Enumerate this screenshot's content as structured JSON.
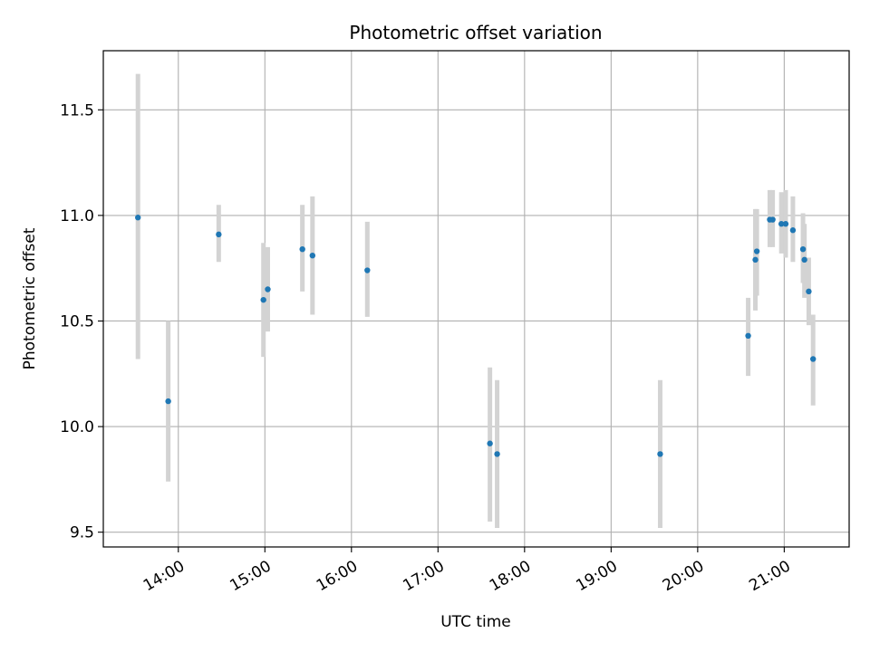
{
  "chart_data": {
    "type": "scatter",
    "title": "Photometric offset variation",
    "xlabel": "UTC time",
    "ylabel": "Photometric offset",
    "x_axis_kind": "time-of-day",
    "xlim": [
      "13:08",
      "21:45"
    ],
    "ylim": [
      9.43,
      11.78
    ],
    "grid": true,
    "x_ticks": [
      "14:00",
      "15:00",
      "16:00",
      "17:00",
      "18:00",
      "19:00",
      "20:00",
      "21:00"
    ],
    "y_ticks": [
      9.5,
      10.0,
      10.5,
      11.0,
      11.5
    ],
    "y_tick_labels": [
      "9.5",
      "10.0",
      "10.5",
      "11.0",
      "11.5"
    ],
    "colors": {
      "point": "#1f77b4",
      "errorbar": "#d3d3d3",
      "grid": "#b0b0b0"
    },
    "points": [
      {
        "x": "13:32",
        "y": 10.99,
        "ylo": 10.32,
        "yhi": 11.67
      },
      {
        "x": "13:53",
        "y": 10.12,
        "ylo": 9.74,
        "yhi": 10.5
      },
      {
        "x": "14:28",
        "y": 10.91,
        "ylo": 10.78,
        "yhi": 11.05
      },
      {
        "x": "14:59",
        "y": 10.6,
        "ylo": 10.33,
        "yhi": 10.87
      },
      {
        "x": "15:02",
        "y": 10.65,
        "ylo": 10.45,
        "yhi": 10.85
      },
      {
        "x": "15:26",
        "y": 10.84,
        "ylo": 10.64,
        "yhi": 11.05
      },
      {
        "x": "15:33",
        "y": 10.81,
        "ylo": 10.53,
        "yhi": 11.09
      },
      {
        "x": "16:11",
        "y": 10.74,
        "ylo": 10.52,
        "yhi": 10.97
      },
      {
        "x": "17:36",
        "y": 9.92,
        "ylo": 9.55,
        "yhi": 10.28
      },
      {
        "x": "17:41",
        "y": 9.87,
        "ylo": 9.52,
        "yhi": 10.22
      },
      {
        "x": "19:34",
        "y": 9.87,
        "ylo": 9.52,
        "yhi": 10.22
      },
      {
        "x": "20:35",
        "y": 10.43,
        "ylo": 10.24,
        "yhi": 10.61
      },
      {
        "x": "20:40",
        "y": 10.79,
        "ylo": 10.55,
        "yhi": 11.03
      },
      {
        "x": "20:41",
        "y": 10.83,
        "ylo": 10.62,
        "yhi": 11.03
      },
      {
        "x": "20:50",
        "y": 10.98,
        "ylo": 10.85,
        "yhi": 11.12
      },
      {
        "x": "20:52",
        "y": 10.98,
        "ylo": 10.85,
        "yhi": 11.12
      },
      {
        "x": "20:58",
        "y": 10.96,
        "ylo": 10.82,
        "yhi": 11.11
      },
      {
        "x": "21:01",
        "y": 10.96,
        "ylo": 10.8,
        "yhi": 11.12
      },
      {
        "x": "21:06",
        "y": 10.93,
        "ylo": 10.78,
        "yhi": 11.09
      },
      {
        "x": "21:13",
        "y": 10.84,
        "ylo": 10.68,
        "yhi": 11.01
      },
      {
        "x": "21:14",
        "y": 10.79,
        "ylo": 10.61,
        "yhi": 10.96
      },
      {
        "x": "21:17",
        "y": 10.64,
        "ylo": 10.48,
        "yhi": 10.8
      },
      {
        "x": "21:20",
        "y": 10.32,
        "ylo": 10.1,
        "yhi": 10.53
      }
    ]
  }
}
